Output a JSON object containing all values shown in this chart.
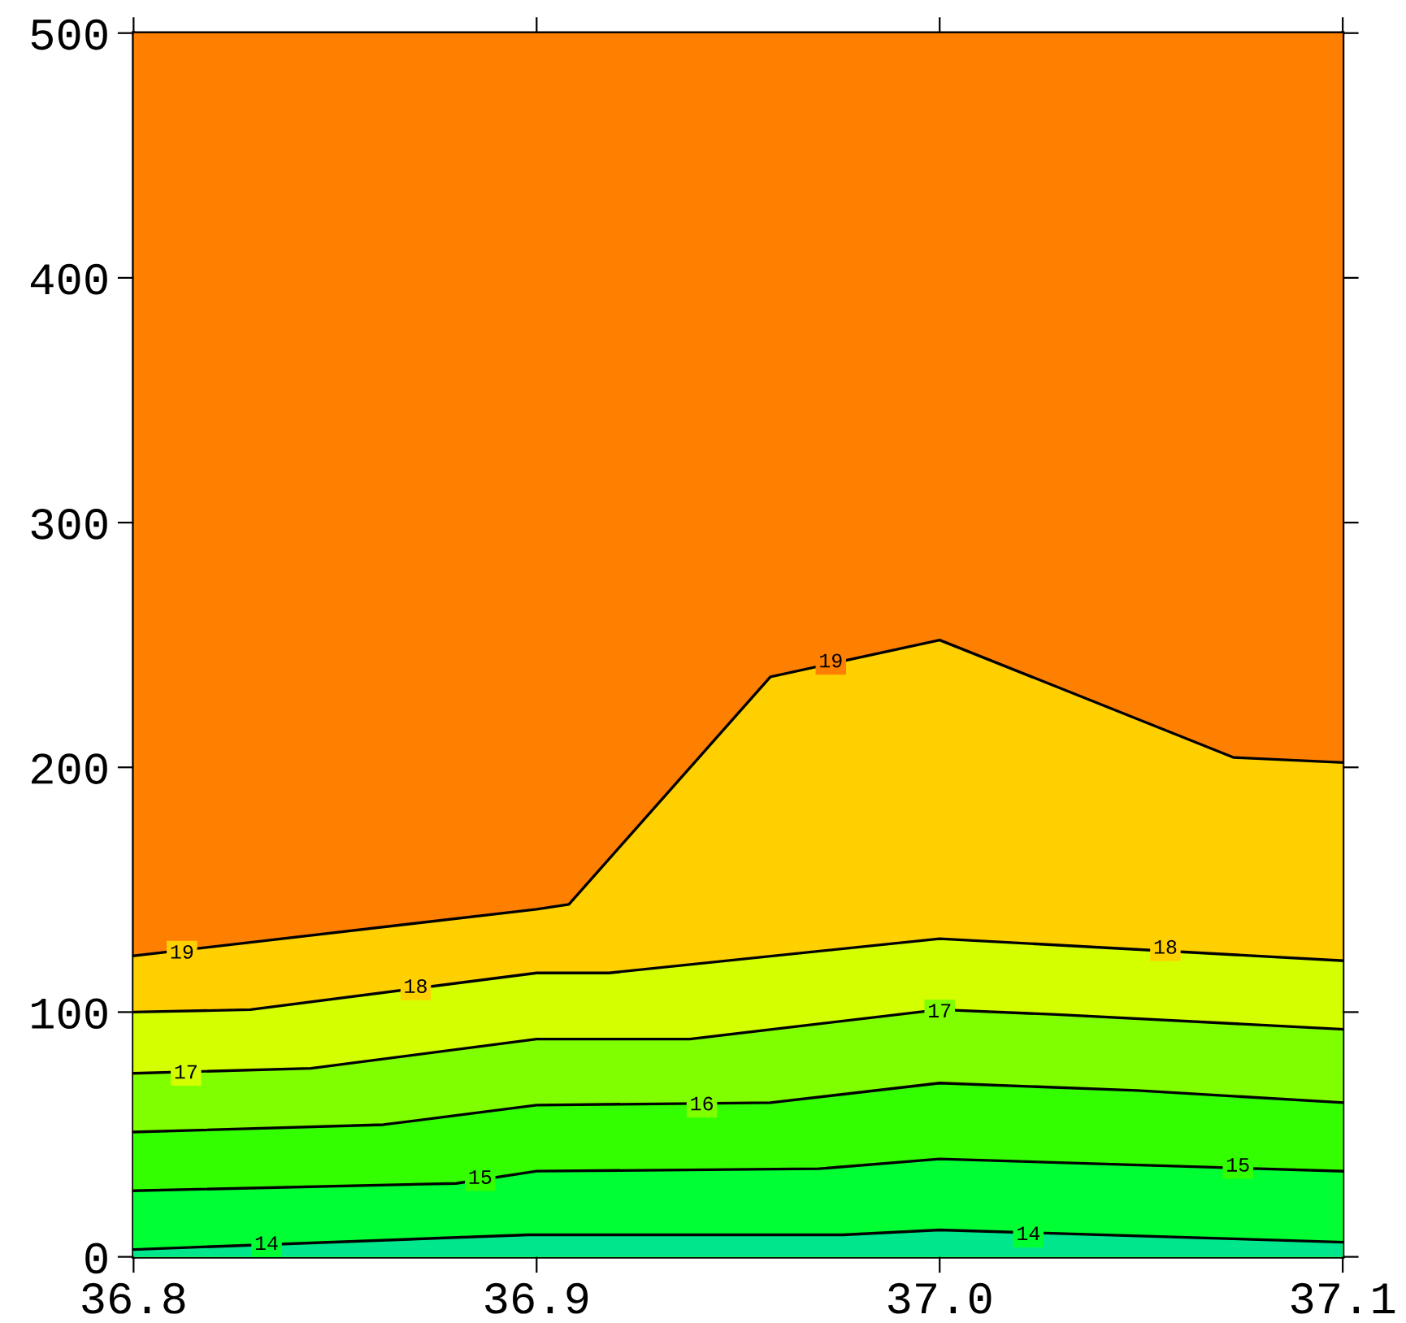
{
  "chart_data": {
    "type": "area",
    "series": [
      {
        "color": "#00e68c",
        "x": [
          36.8,
          36.898,
          36.976,
          37.0,
          37.1
        ],
        "values": [
          3,
          9,
          9,
          11,
          6
        ]
      },
      {
        "color": "#00ff33",
        "x": [
          36.8,
          36.88,
          36.9,
          36.97,
          37.0,
          37.1
        ],
        "values": [
          27,
          30,
          35,
          36,
          40,
          35
        ]
      },
      {
        "color": "#33ff00",
        "x": [
          36.8,
          36.862,
          36.9,
          36.958,
          37.0,
          37.049,
          37.1
        ],
        "values": [
          51,
          54,
          62,
          63,
          71,
          68,
          63
        ]
      },
      {
        "color": "#80ff00",
        "x": [
          36.8,
          36.844,
          36.9,
          36.938,
          37.0,
          37.029,
          37.1
        ],
        "values": [
          75,
          77,
          89,
          89,
          101,
          99,
          93
        ]
      },
      {
        "color": "#d4ff00",
        "x": [
          36.8,
          36.829,
          36.9,
          36.918,
          37.0,
          37.1
        ],
        "values": [
          100,
          101,
          116,
          116,
          130,
          121
        ]
      },
      {
        "color": "#ffd000",
        "x": [
          36.8,
          36.9,
          36.908,
          36.958,
          37.0,
          37.073,
          37.1
        ],
        "values": [
          123,
          142,
          144,
          237,
          252,
          204,
          202
        ]
      }
    ],
    "bands": [
      {
        "axis": "y",
        "from": 0,
        "to": 500,
        "color": "#ff8000"
      }
    ],
    "xlim": [
      36.8,
      37.1
    ],
    "ylim": [
      0,
      500
    ],
    "xticks": [
      {
        "value": 36.8,
        "label": "36.8"
      },
      {
        "value": 36.9,
        "label": "36.9"
      },
      {
        "value": 37.0,
        "label": "37.0"
      },
      {
        "value": 37.1,
        "label": "37.1"
      }
    ],
    "yticks": [
      0,
      100,
      200,
      300,
      400,
      500
    ],
    "grid": false,
    "legend": false,
    "annotations": [
      {
        "text": "14",
        "x": 36.833,
        "y": 5
      },
      {
        "text": "14",
        "x": 37.022,
        "y": 9
      },
      {
        "text": "15",
        "x": 36.886,
        "y": 32
      },
      {
        "text": "15",
        "x": 37.074,
        "y": 37
      },
      {
        "text": "16",
        "x": 36.941,
        "y": 62
      },
      {
        "text": "17",
        "x": 36.813,
        "y": 75
      },
      {
        "text": "17",
        "x": 37.0,
        "y": 100
      },
      {
        "text": "18",
        "x": 36.87,
        "y": 110
      },
      {
        "text": "18",
        "x": 37.056,
        "y": 126
      },
      {
        "text": "19",
        "x": 36.812,
        "y": 124
      },
      {
        "text": "19",
        "x": 36.973,
        "y": 243
      }
    ]
  }
}
